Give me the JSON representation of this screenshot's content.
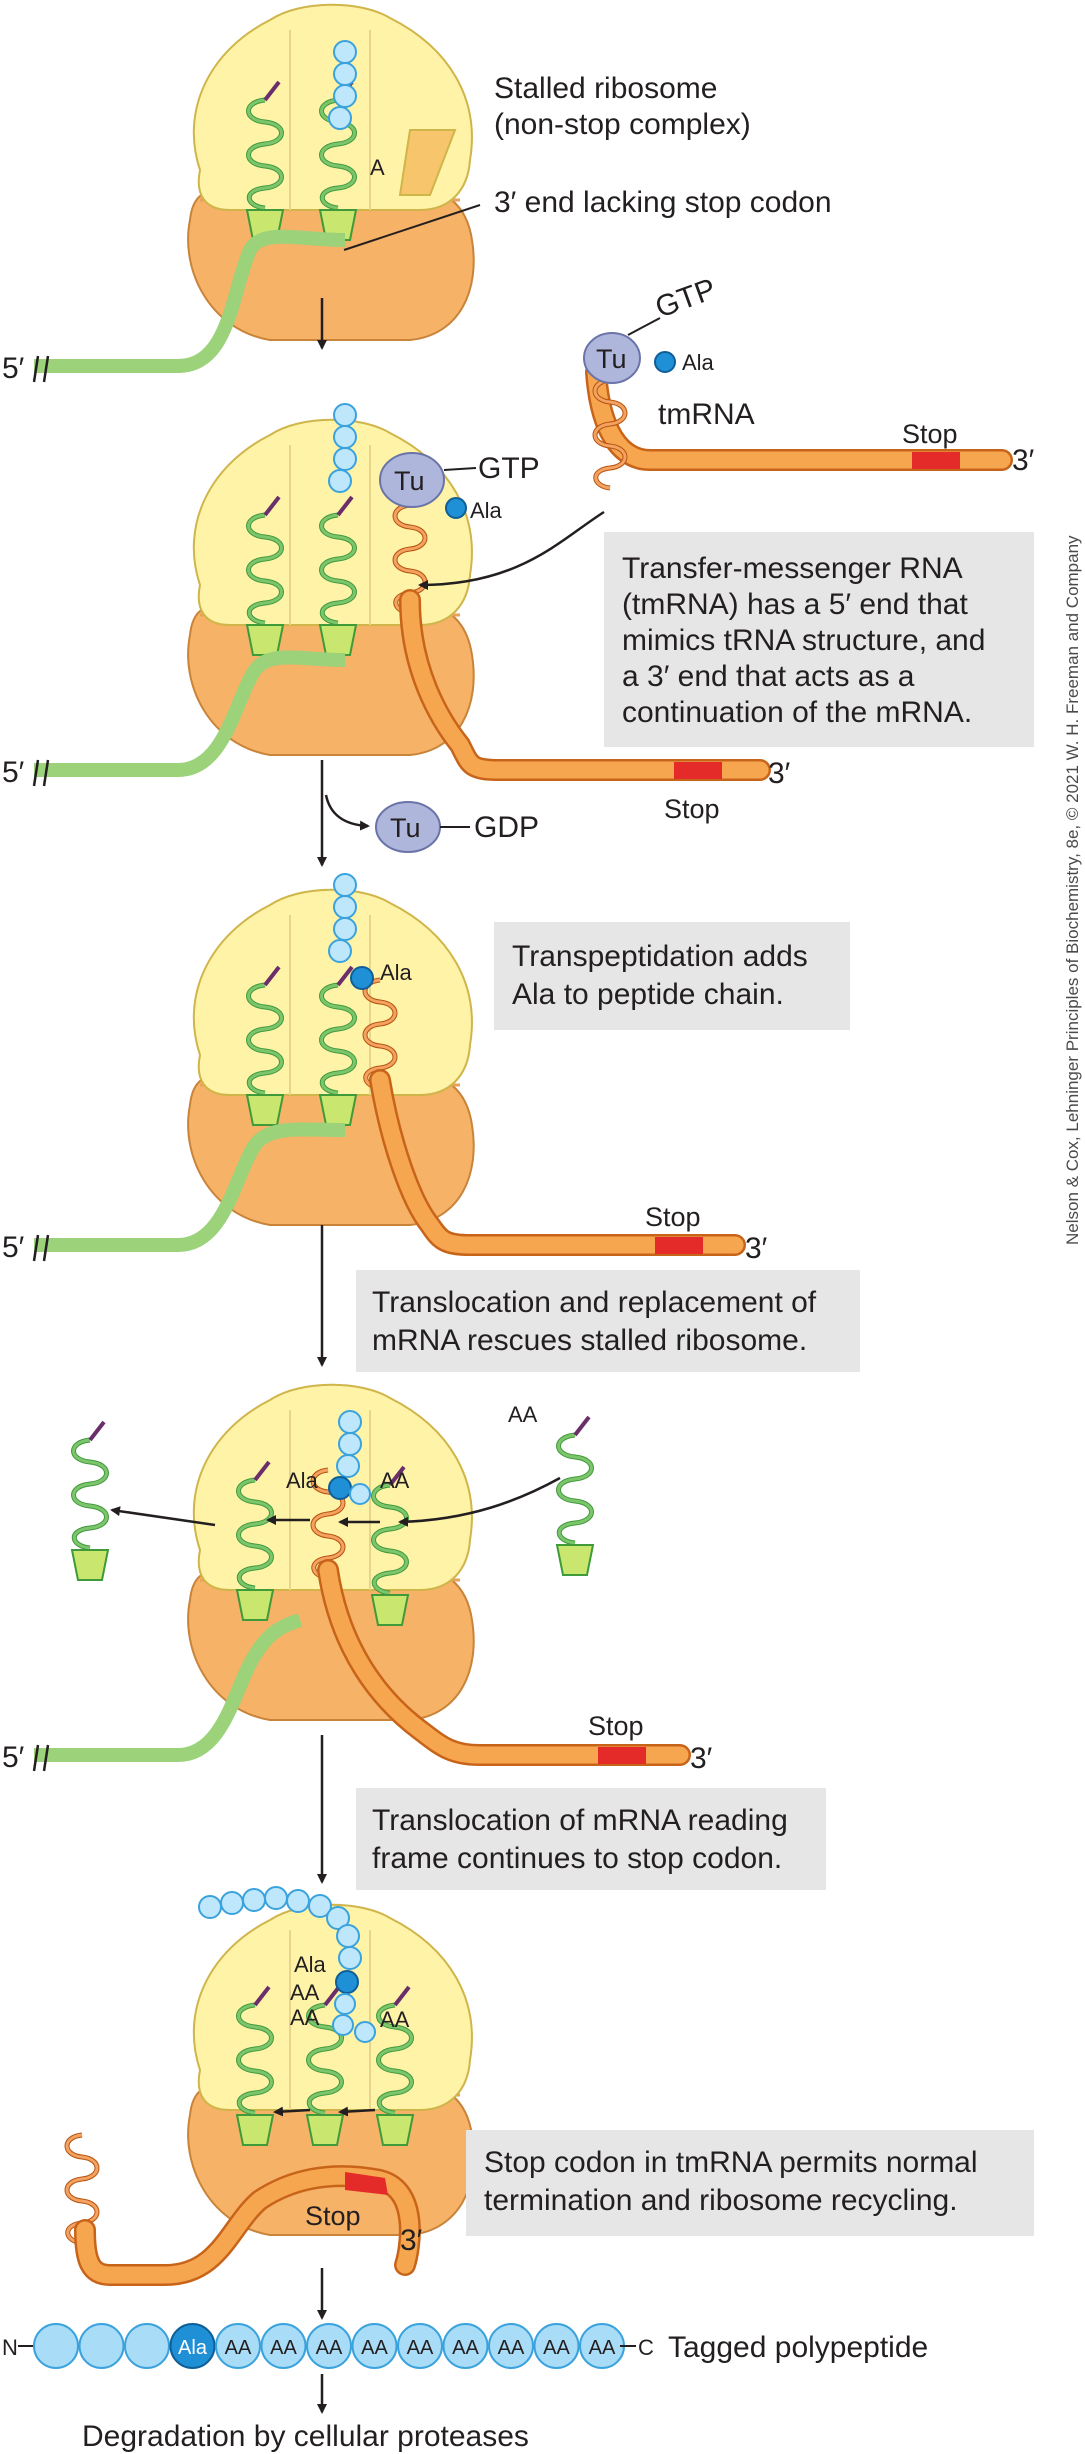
{
  "labels": {
    "copyright": "Nelson & Cox, Lehninger Principles of Biochemistry, 8e, © 2021 W. H. Freeman and Company",
    "five_prime": "5′",
    "three_prime": "3′",
    "stop": "Stop",
    "gtp": "GTP",
    "gdp": "GDP",
    "tu": "Tu",
    "ala": "Ala",
    "aa": "AA",
    "tmrna": "tmRNA",
    "a_site": "A"
  },
  "step1": {
    "title_line1": "Stalled ribosome",
    "title_line2": "(non-stop complex)",
    "note": "3′ end lacking stop codon"
  },
  "step2": {
    "box_lines": [
      "Transfer-messenger RNA",
      "(tmRNA) has a 5′ end that",
      "mimics tRNA structure, and",
      "a 3′ end that acts as a",
      "continuation of the mRNA."
    ]
  },
  "step3": {
    "box_lines": [
      "Transpeptidation adds",
      "Ala to peptide chain."
    ]
  },
  "step4": {
    "box_lines": [
      "Translocation and replacement of",
      "mRNA rescues stalled ribosome."
    ]
  },
  "step5": {
    "box_lines": [
      "Translocation of mRNA reading",
      "frame continues to stop codon."
    ]
  },
  "step6": {
    "box_lines": [
      "Stop codon in tmRNA permits normal",
      "termination and ribosome recycling."
    ]
  },
  "polypeptide": {
    "n_term": "N",
    "c_term": "C",
    "label": "Tagged polypeptide",
    "residues": [
      "",
      "",
      "",
      "Ala",
      "AA",
      "AA",
      "AA",
      "AA",
      "AA",
      "AA",
      "AA",
      "AA",
      "AA"
    ]
  },
  "final": "Degradation by cellular proteases",
  "colors": {
    "mrna": "#9bd27a",
    "tmrna": "#f7a650",
    "stop": "#e52a2a",
    "ala": "#1f8fd6",
    "large_subunit": "#fff3a8",
    "small_subunit": "#f6b267"
  }
}
